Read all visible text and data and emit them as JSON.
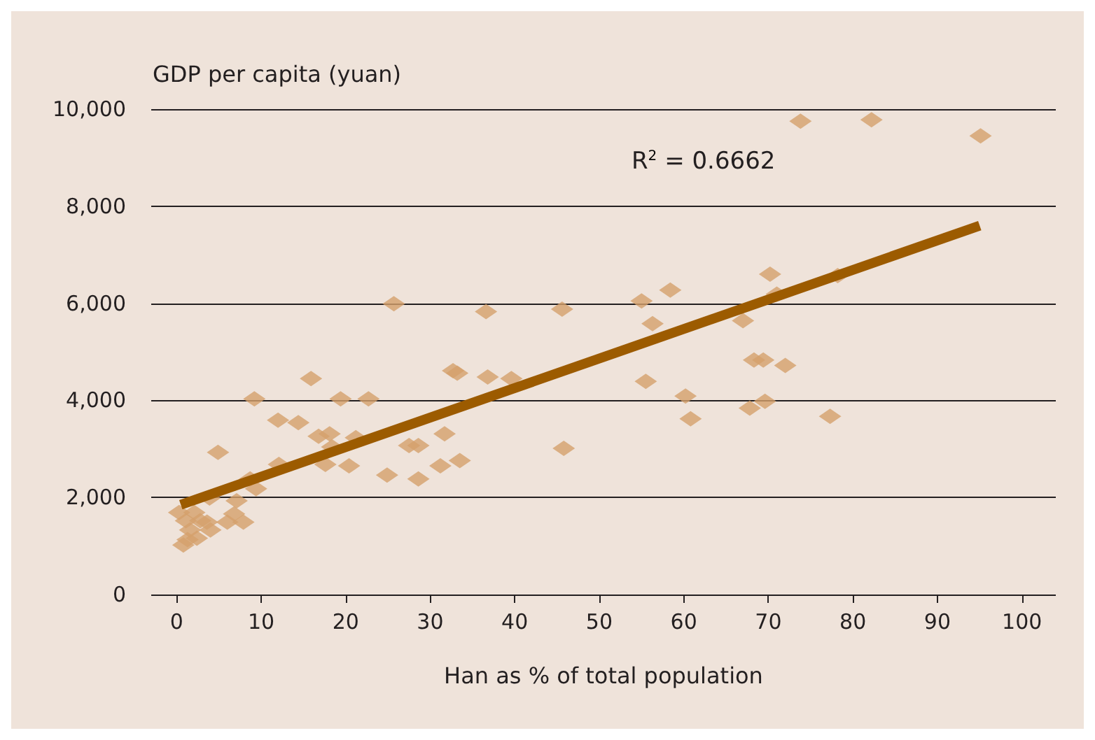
{
  "chart_data": {
    "type": "scatter",
    "xlabel": "Han as % of total population",
    "ylabel": "GDP per capita (yuan)",
    "xlim": [
      -3,
      104
    ],
    "xticks": [
      0,
      10,
      20,
      30,
      40,
      50,
      60,
      70,
      80,
      90,
      100
    ],
    "ylim": [
      0,
      10000
    ],
    "yticks": [
      {
        "value": 0,
        "label": "0"
      },
      {
        "value": 2000,
        "label": "2,000"
      },
      {
        "value": 4000,
        "label": "4,000"
      },
      {
        "value": 6000,
        "label": "6,000"
      },
      {
        "value": 8000,
        "label": "8,000"
      },
      {
        "value": 10000,
        "label": "10,000"
      }
    ],
    "grid": "y",
    "marker": "diamond",
    "annotations": [
      "R$^{2}$ = 0.6662"
    ],
    "series": [
      {
        "color": "#d4a06c",
        "x": [
          0.3,
          1.1,
          1.6,
          1.3,
          0.8,
          2.1,
          2.8,
          2.4,
          3.6,
          4,
          4.9,
          3.9,
          6,
          6.8,
          7.1,
          7.9,
          8.7,
          9.4,
          9.2,
          12,
          12.1,
          14.4,
          15.9,
          16.8,
          17.6,
          18.1,
          18.4,
          19.4,
          20.4,
          21.2,
          22.7,
          24.9,
          25.7,
          27.5,
          28.6,
          28.6,
          31.2,
          31.7,
          32.7,
          33.2,
          33.5,
          36.6,
          36.8,
          39.6,
          45.6,
          45.8,
          55,
          55.5,
          56.3,
          58.4,
          60.2,
          60.8,
          67,
          67.8,
          68.3,
          69.4,
          69.6,
          70.2,
          71,
          72,
          73.8,
          77.3,
          78.2,
          82.2,
          95.1
        ],
        "values": [
          1690,
          1520,
          1330,
          1130,
          1020,
          1690,
          1520,
          1160,
          1490,
          1330,
          2930,
          1990,
          1490,
          1660,
          1930,
          1490,
          2380,
          2180,
          4030,
          3590,
          2680,
          3540,
          4450,
          3260,
          2680,
          3310,
          3040,
          4030,
          2650,
          3230,
          4030,
          2460,
          5990,
          3070,
          3070,
          2380,
          2650,
          3310,
          4610,
          4560,
          2760,
          5830,
          4480,
          4450,
          5880,
          3010,
          6050,
          4390,
          5580,
          6270,
          4090,
          3620,
          5640,
          3840,
          4830,
          4830,
          3980,
          6600,
          6190,
          4720,
          9750,
          3670,
          6570,
          9780,
          9450
        ]
      },
      {
        "type": "line",
        "color": "#9c5b00",
        "x": [
          0.5,
          95
        ],
        "values": [
          1850,
          7600
        ],
        "marker": "none"
      }
    ]
  }
}
